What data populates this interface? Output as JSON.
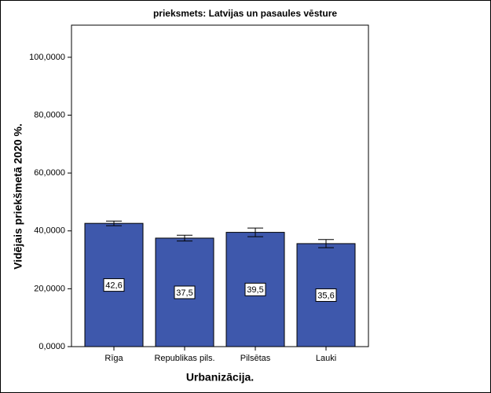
{
  "chart_data": {
    "type": "bar",
    "title": "prieksmets: Latvijas un pasaules vēsture",
    "x_label": "Urbanizācija.",
    "y_label": "Vidējais priekšmetā 2020 %.",
    "categories": [
      "Rīga",
      "Republikas pils.",
      "Pilsētas",
      "Lauki"
    ],
    "values": [
      42.6,
      37.5,
      39.5,
      35.6
    ],
    "value_labels": [
      "42,6",
      "37,5",
      "39,5",
      "35,6"
    ],
    "errors": [
      0.8,
      1.0,
      1.5,
      1.4
    ],
    "color": "#3e58ac",
    "ylim": [
      0,
      111.1
    ],
    "yticks": [
      {
        "value": 0,
        "label": "0,0000"
      },
      {
        "value": 20,
        "label": "20,0000"
      },
      {
        "value": 40,
        "label": "40,0000"
      },
      {
        "value": 60,
        "label": "60,0000"
      },
      {
        "value": 80,
        "label": "80,0000"
      },
      {
        "value": 100,
        "label": "100,0000"
      }
    ]
  }
}
